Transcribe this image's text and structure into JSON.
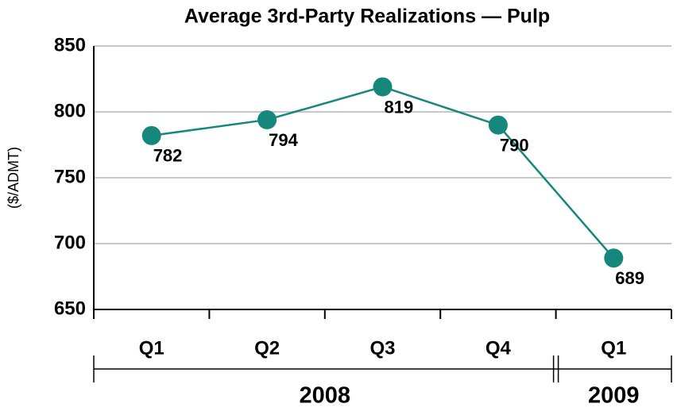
{
  "chart_data": {
    "type": "line",
    "title": "Average 3rd-Party Realizations — Pulp",
    "y_label": "($/ADMT)",
    "categories": [
      "Q1",
      "Q2",
      "Q3",
      "Q4",
      "Q1"
    ],
    "groups": [
      "2008",
      "2009"
    ],
    "series": [
      {
        "color": "#16877d",
        "values": [
          782,
          794,
          819,
          790,
          689
        ]
      }
    ],
    "ylim": [
      650,
      850
    ],
    "yticks": [
      650,
      700,
      750,
      800,
      850
    ],
    "grid": true
  }
}
